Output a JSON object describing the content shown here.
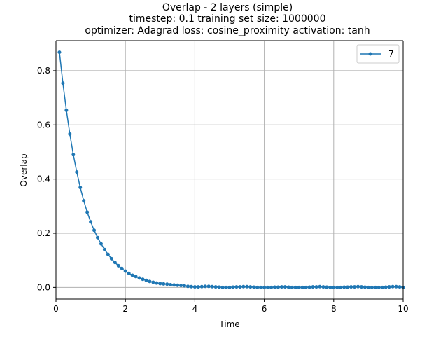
{
  "chart_data": {
    "type": "line",
    "title": "Overlap - 2 layers (simple)\ntimestep: 0.1 training set size: 1000000\noptimizer: Adagrad loss: cosine_proximity activation: tanh",
    "title_lines": [
      "Overlap - 2 layers (simple)",
      "timestep: 0.1 training set size: 1000000",
      "optimizer: Adagrad loss: cosine_proximity activation: tanh"
    ],
    "xlabel": "Time",
    "ylabel": "Overlap",
    "xlim": [
      0,
      10
    ],
    "ylim": [
      -0.043,
      0.911
    ],
    "xticks": [
      0,
      2,
      4,
      6,
      8,
      10
    ],
    "xtick_labels": [
      "0",
      "2",
      "4",
      "6",
      "8",
      "10"
    ],
    "yticks": [
      0.0,
      0.2,
      0.4,
      0.6,
      0.8
    ],
    "ytick_labels": [
      "0.0",
      "0.2",
      "0.4",
      "0.6",
      "0.8"
    ],
    "grid": true,
    "legend_position": "top-right",
    "series": [
      {
        "name": "7",
        "color": "#1f77b4",
        "marker": "dot",
        "x": [
          0.1,
          0.2,
          0.3,
          0.4,
          0.5,
          0.6,
          0.7,
          0.8,
          0.9,
          1.0,
          1.1,
          1.2,
          1.3,
          1.4,
          1.5,
          1.6,
          1.7,
          1.8,
          1.9,
          2.0,
          2.1,
          2.2,
          2.3,
          2.4,
          2.5,
          2.6,
          2.7,
          2.8,
          2.9,
          3.0,
          3.1,
          3.2,
          3.3,
          3.4,
          3.5,
          3.6,
          3.7,
          3.8,
          3.9,
          4.0,
          4.1,
          4.2,
          4.3,
          4.4,
          4.5,
          4.6,
          4.7,
          4.8,
          4.9,
          5.0,
          5.1,
          5.2,
          5.3,
          5.4,
          5.5,
          5.6,
          5.7,
          5.8,
          5.9,
          6.0,
          6.1,
          6.2,
          6.3,
          6.4,
          6.5,
          6.6,
          6.7,
          6.8,
          6.9,
          7.0,
          7.1,
          7.2,
          7.3,
          7.4,
          7.5,
          7.6,
          7.7,
          7.8,
          7.9,
          8.0,
          8.1,
          8.2,
          8.3,
          8.4,
          8.5,
          8.6,
          8.7,
          8.8,
          8.9,
          9.0,
          9.1,
          9.2,
          9.3,
          9.4,
          9.5,
          9.6,
          9.7,
          9.8,
          9.9,
          10.0
        ],
        "y": [
          0.868,
          0.754,
          0.654,
          0.566,
          0.49,
          0.426,
          0.369,
          0.32,
          0.278,
          0.242,
          0.211,
          0.184,
          0.161,
          0.14,
          0.122,
          0.106,
          0.092,
          0.08,
          0.07,
          0.06,
          0.052,
          0.045,
          0.04,
          0.035,
          0.03,
          0.026,
          0.022,
          0.019,
          0.016,
          0.014,
          0.013,
          0.012,
          0.01,
          0.009,
          0.008,
          0.007,
          0.006,
          0.004,
          0.003,
          0.002,
          0.002,
          0.003,
          0.004,
          0.004,
          0.003,
          0.002,
          0.001,
          0.0,
          0.0,
          0.0,
          0.001,
          0.002,
          0.002,
          0.003,
          0.003,
          0.002,
          0.001,
          0.0,
          0.0,
          0.0,
          0.0,
          0.0,
          0.001,
          0.001,
          0.002,
          0.002,
          0.001,
          0.0,
          0.0,
          0.0,
          0.0,
          0.0,
          0.001,
          0.002,
          0.002,
          0.003,
          0.002,
          0.001,
          0.0,
          0.0,
          0.0,
          0.0,
          0.001,
          0.001,
          0.002,
          0.002,
          0.003,
          0.002,
          0.001,
          0.0,
          0.0,
          0.0,
          0.0,
          0.0,
          0.001,
          0.002,
          0.003,
          0.003,
          0.002,
          0.0
        ]
      }
    ]
  }
}
